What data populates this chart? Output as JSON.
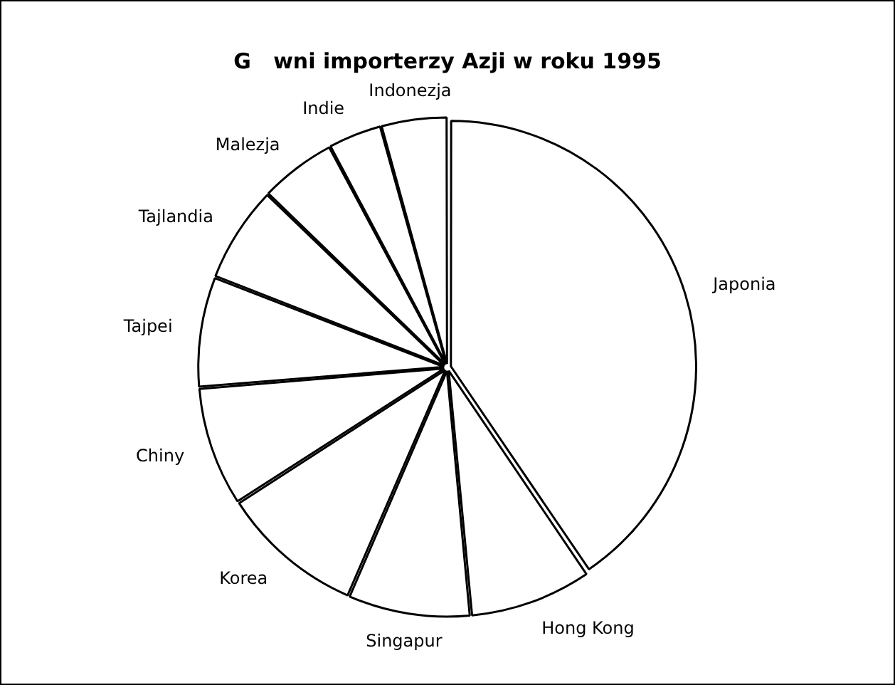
{
  "chart_data": {
    "type": "pie",
    "title": "G   wni importerzy Azji w roku 1995",
    "categories": [
      "Japonia",
      "Hong Kong",
      "Singapur",
      "Korea",
      "Chiny",
      "Tajpei",
      "Tajlandia",
      "Malezja",
      "Indie",
      "Indonezja"
    ],
    "values": [
      40.5,
      8,
      8,
      9.4,
      7.8,
      7.2,
      6.3,
      5,
      3.5,
      4.3
    ],
    "colors": [
      "#ffffff",
      "#ffffff",
      "#ffffff",
      "#ffffff",
      "#ffffff",
      "#ffffff",
      "#ffffff",
      "#ffffff",
      "#ffffff",
      "#ffffff"
    ],
    "legend": false
  }
}
